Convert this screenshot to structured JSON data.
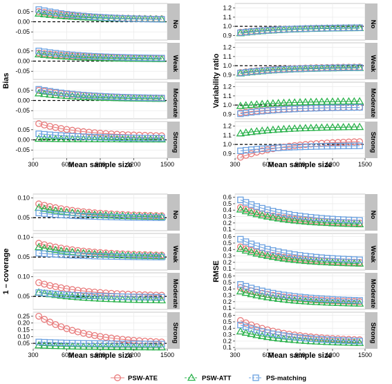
{
  "colors": {
    "PSW-ATE": "#e8797a",
    "PSW-ATT": "#2bb24c",
    "PS-matching": "#6aa0e0",
    "strip_bg": "#c2c2c2",
    "grid": "#ebebeb"
  },
  "facet_rows": [
    "No",
    "Weak",
    "Moderate",
    "Strong"
  ],
  "legend": [
    "PSW-ATE",
    "PSW-ATT",
    "PS-matching"
  ],
  "chart_data": [
    {
      "id": "bias",
      "type": "line",
      "xlabel": "Mean sample size",
      "ylabel": "Bias",
      "xlim": [
        300,
        1500
      ],
      "ylim": [
        -0.09,
        0.09
      ],
      "xticks": [
        "300",
        "600",
        "900",
        "1200",
        "1500"
      ],
      "yticks": [
        "-0.05",
        "0.00",
        "0.05"
      ],
      "ref_y": 0.0,
      "grid": true,
      "facets": [
        {
          "name": "No",
          "series": [
            {
              "name": "PSW-ATE",
              "x": [
                350,
                1450
              ],
              "values": [
                0.05,
                0.014
              ]
            },
            {
              "name": "PSW-ATT",
              "x": [
                350,
                1450
              ],
              "values": [
                0.04,
                0.012
              ]
            },
            {
              "name": "PS-matching",
              "x": [
                350,
                1450
              ],
              "values": [
                0.06,
                0.012
              ]
            }
          ]
        },
        {
          "name": "Weak",
          "series": [
            {
              "name": "PSW-ATE",
              "x": [
                350,
                1450
              ],
              "values": [
                0.04,
                0.014
              ]
            },
            {
              "name": "PSW-ATT",
              "x": [
                350,
                1450
              ],
              "values": [
                0.033,
                0.01
              ]
            },
            {
              "name": "PS-matching",
              "x": [
                350,
                1450
              ],
              "values": [
                0.05,
                0.015
              ]
            }
          ]
        },
        {
          "name": "Moderate",
          "series": [
            {
              "name": "PSW-ATE",
              "x": [
                350,
                1450
              ],
              "values": [
                0.05,
                0.012
              ]
            },
            {
              "name": "PSW-ATT",
              "x": [
                350,
                1450
              ],
              "values": [
                0.035,
                0.008
              ]
            },
            {
              "name": "PS-matching",
              "x": [
                350,
                1450
              ],
              "values": [
                0.055,
                0.012
              ]
            }
          ]
        },
        {
          "name": "Strong",
          "series": [
            {
              "name": "PSW-ATE",
              "x": [
                350,
                1450
              ],
              "values": [
                0.08,
                0.02
              ]
            },
            {
              "name": "PSW-ATT",
              "x": [
                350,
                1450
              ],
              "values": [
                0.005,
                0.002
              ]
            },
            {
              "name": "PS-matching",
              "x": [
                350,
                1450
              ],
              "values": [
                0.03,
                0.008
              ]
            }
          ]
        }
      ]
    },
    {
      "id": "variability-ratio",
      "type": "line",
      "xlabel": "Mean sample size",
      "ylabel": "Variability ratio",
      "xlim": [
        300,
        1500
      ],
      "ylim": [
        0.85,
        1.25
      ],
      "xticks": [
        "300",
        "600",
        "900",
        "1200",
        "1500"
      ],
      "yticks": [
        "0.9",
        "1.0",
        "1.1",
        "1.2"
      ],
      "ref_y": 1.0,
      "grid": true,
      "facets": [
        {
          "name": "No",
          "series": [
            {
              "name": "PSW-ATE",
              "x": [
                350,
                1450
              ],
              "values": [
                0.935,
                0.985
              ]
            },
            {
              "name": "PSW-ATT",
              "x": [
                350,
                1450
              ],
              "values": [
                0.925,
                0.98
              ]
            },
            {
              "name": "PS-matching",
              "x": [
                350,
                1450
              ],
              "values": [
                0.93,
                0.985
              ]
            }
          ]
        },
        {
          "name": "Weak",
          "series": [
            {
              "name": "PSW-ATE",
              "x": [
                350,
                1450
              ],
              "values": [
                0.925,
                0.985
              ]
            },
            {
              "name": "PSW-ATT",
              "x": [
                350,
                1450
              ],
              "values": [
                0.915,
                0.975
              ]
            },
            {
              "name": "PS-matching",
              "x": [
                350,
                1450
              ],
              "values": [
                0.92,
                0.98
              ]
            }
          ]
        },
        {
          "name": "Moderate",
          "series": [
            {
              "name": "PSW-ATE",
              "x": [
                350,
                1450
              ],
              "values": [
                0.915,
                0.975
              ]
            },
            {
              "name": "PSW-ATT",
              "x": [
                350,
                1450
              ],
              "values": [
                0.99,
                1.04
              ]
            },
            {
              "name": "PS-matching",
              "x": [
                350,
                1450
              ],
              "values": [
                0.905,
                0.975
              ]
            }
          ]
        },
        {
          "name": "Strong",
          "series": [
            {
              "name": "PSW-ATE",
              "x": [
                350,
                1450
              ],
              "values": [
                0.86,
                1.03
              ]
            },
            {
              "name": "PSW-ATT",
              "x": [
                350,
                1450
              ],
              "values": [
                1.12,
                1.19
              ]
            },
            {
              "name": "PS-matching",
              "x": [
                350,
                1450
              ],
              "values": [
                0.93,
                0.985
              ]
            }
          ]
        }
      ]
    },
    {
      "id": "one-minus-coverage",
      "type": "line",
      "xlabel": "Mean sample size",
      "ylabel": "1 – coverage",
      "xlim": [
        300,
        1500
      ],
      "ylim": [
        0.017,
        0.11
      ],
      "xticks": [
        "300",
        "600",
        "900",
        "1200",
        "1500"
      ],
      "yticks": [
        "0.05",
        "0.10"
      ],
      "yticks_strong": [
        "0.05",
        "0.10",
        "0.15",
        "0.20",
        "0.25"
      ],
      "ref_y": 0.05,
      "grid": true,
      "facets": [
        {
          "name": "No",
          "series": [
            {
              "name": "PSW-ATE",
              "x": [
                350,
                1450
              ],
              "values": [
                0.085,
                0.055
              ]
            },
            {
              "name": "PSW-ATT",
              "x": [
                350,
                1450
              ],
              "values": [
                0.075,
                0.052
              ]
            },
            {
              "name": "PS-matching",
              "x": [
                350,
                1450
              ],
              "values": [
                0.062,
                0.05
              ]
            }
          ]
        },
        {
          "name": "Weak",
          "series": [
            {
              "name": "PSW-ATE",
              "x": [
                350,
                1450
              ],
              "values": [
                0.085,
                0.055
              ]
            },
            {
              "name": "PSW-ATT",
              "x": [
                350,
                1450
              ],
              "values": [
                0.075,
                0.052
              ]
            },
            {
              "name": "PS-matching",
              "x": [
                350,
                1450
              ],
              "values": [
                0.06,
                0.05
              ]
            }
          ]
        },
        {
          "name": "Moderate",
          "series": [
            {
              "name": "PSW-ATE",
              "x": [
                350,
                1450
              ],
              "values": [
                0.085,
                0.053
              ]
            },
            {
              "name": "PSW-ATT",
              "x": [
                350,
                1450
              ],
              "values": [
                0.06,
                0.04
              ]
            },
            {
              "name": "PS-matching",
              "x": [
                350,
                1450
              ],
              "values": [
                0.06,
                0.048
              ]
            }
          ]
        },
        {
          "name": "Strong",
          "ylim": [
            0.01,
            0.28
          ],
          "series": [
            {
              "name": "PSW-ATE",
              "x": [
                350,
                1450
              ],
              "values": [
                0.25,
                0.06
              ]
            },
            {
              "name": "PSW-ATT",
              "x": [
                350,
                1450
              ],
              "values": [
                0.035,
                0.02
              ]
            },
            {
              "name": "PS-matching",
              "x": [
                350,
                1450
              ],
              "values": [
                0.06,
                0.045
              ]
            }
          ]
        }
      ]
    },
    {
      "id": "rmse",
      "type": "line",
      "xlabel": "Mean sample size",
      "ylabel": "RMSE",
      "xlim": [
        300,
        1500
      ],
      "ylim": [
        0.08,
        0.65
      ],
      "xticks": [
        "300",
        "600",
        "900",
        "1200",
        "1500"
      ],
      "yticks": [
        "0.1",
        "0.2",
        "0.3",
        "0.4",
        "0.5",
        "0.6"
      ],
      "grid": true,
      "facets": [
        {
          "name": "No",
          "series": [
            {
              "name": "PSW-ATE",
              "x": [
                350,
                1450
              ],
              "values": [
                0.44,
                0.2
              ]
            },
            {
              "name": "PSW-ATT",
              "x": [
                350,
                1450
              ],
              "values": [
                0.41,
                0.18
              ]
            },
            {
              "name": "PS-matching",
              "x": [
                350,
                1450
              ],
              "values": [
                0.56,
                0.24
              ]
            }
          ]
        },
        {
          "name": "Weak",
          "series": [
            {
              "name": "PSW-ATE",
              "x": [
                350,
                1450
              ],
              "values": [
                0.44,
                0.2
              ]
            },
            {
              "name": "PSW-ATT",
              "x": [
                350,
                1450
              ],
              "values": [
                0.41,
                0.18
              ]
            },
            {
              "name": "PS-matching",
              "x": [
                350,
                1450
              ],
              "values": [
                0.56,
                0.24
              ]
            }
          ]
        },
        {
          "name": "Moderate",
          "series": [
            {
              "name": "PSW-ATE",
              "x": [
                350,
                1450
              ],
              "values": [
                0.42,
                0.2
              ]
            },
            {
              "name": "PSW-ATT",
              "x": [
                350,
                1450
              ],
              "values": [
                0.36,
                0.17
              ]
            },
            {
              "name": "PS-matching",
              "x": [
                350,
                1450
              ],
              "values": [
                0.47,
                0.22
              ]
            }
          ]
        },
        {
          "name": "Strong",
          "series": [
            {
              "name": "PSW-ATE",
              "x": [
                350,
                1450
              ],
              "values": [
                0.52,
                0.22
              ]
            },
            {
              "name": "PSW-ATT",
              "x": [
                350,
                1450
              ],
              "values": [
                0.35,
                0.17
              ]
            },
            {
              "name": "PS-matching",
              "x": [
                350,
                1450
              ],
              "values": [
                0.45,
                0.2
              ]
            }
          ]
        }
      ]
    }
  ]
}
